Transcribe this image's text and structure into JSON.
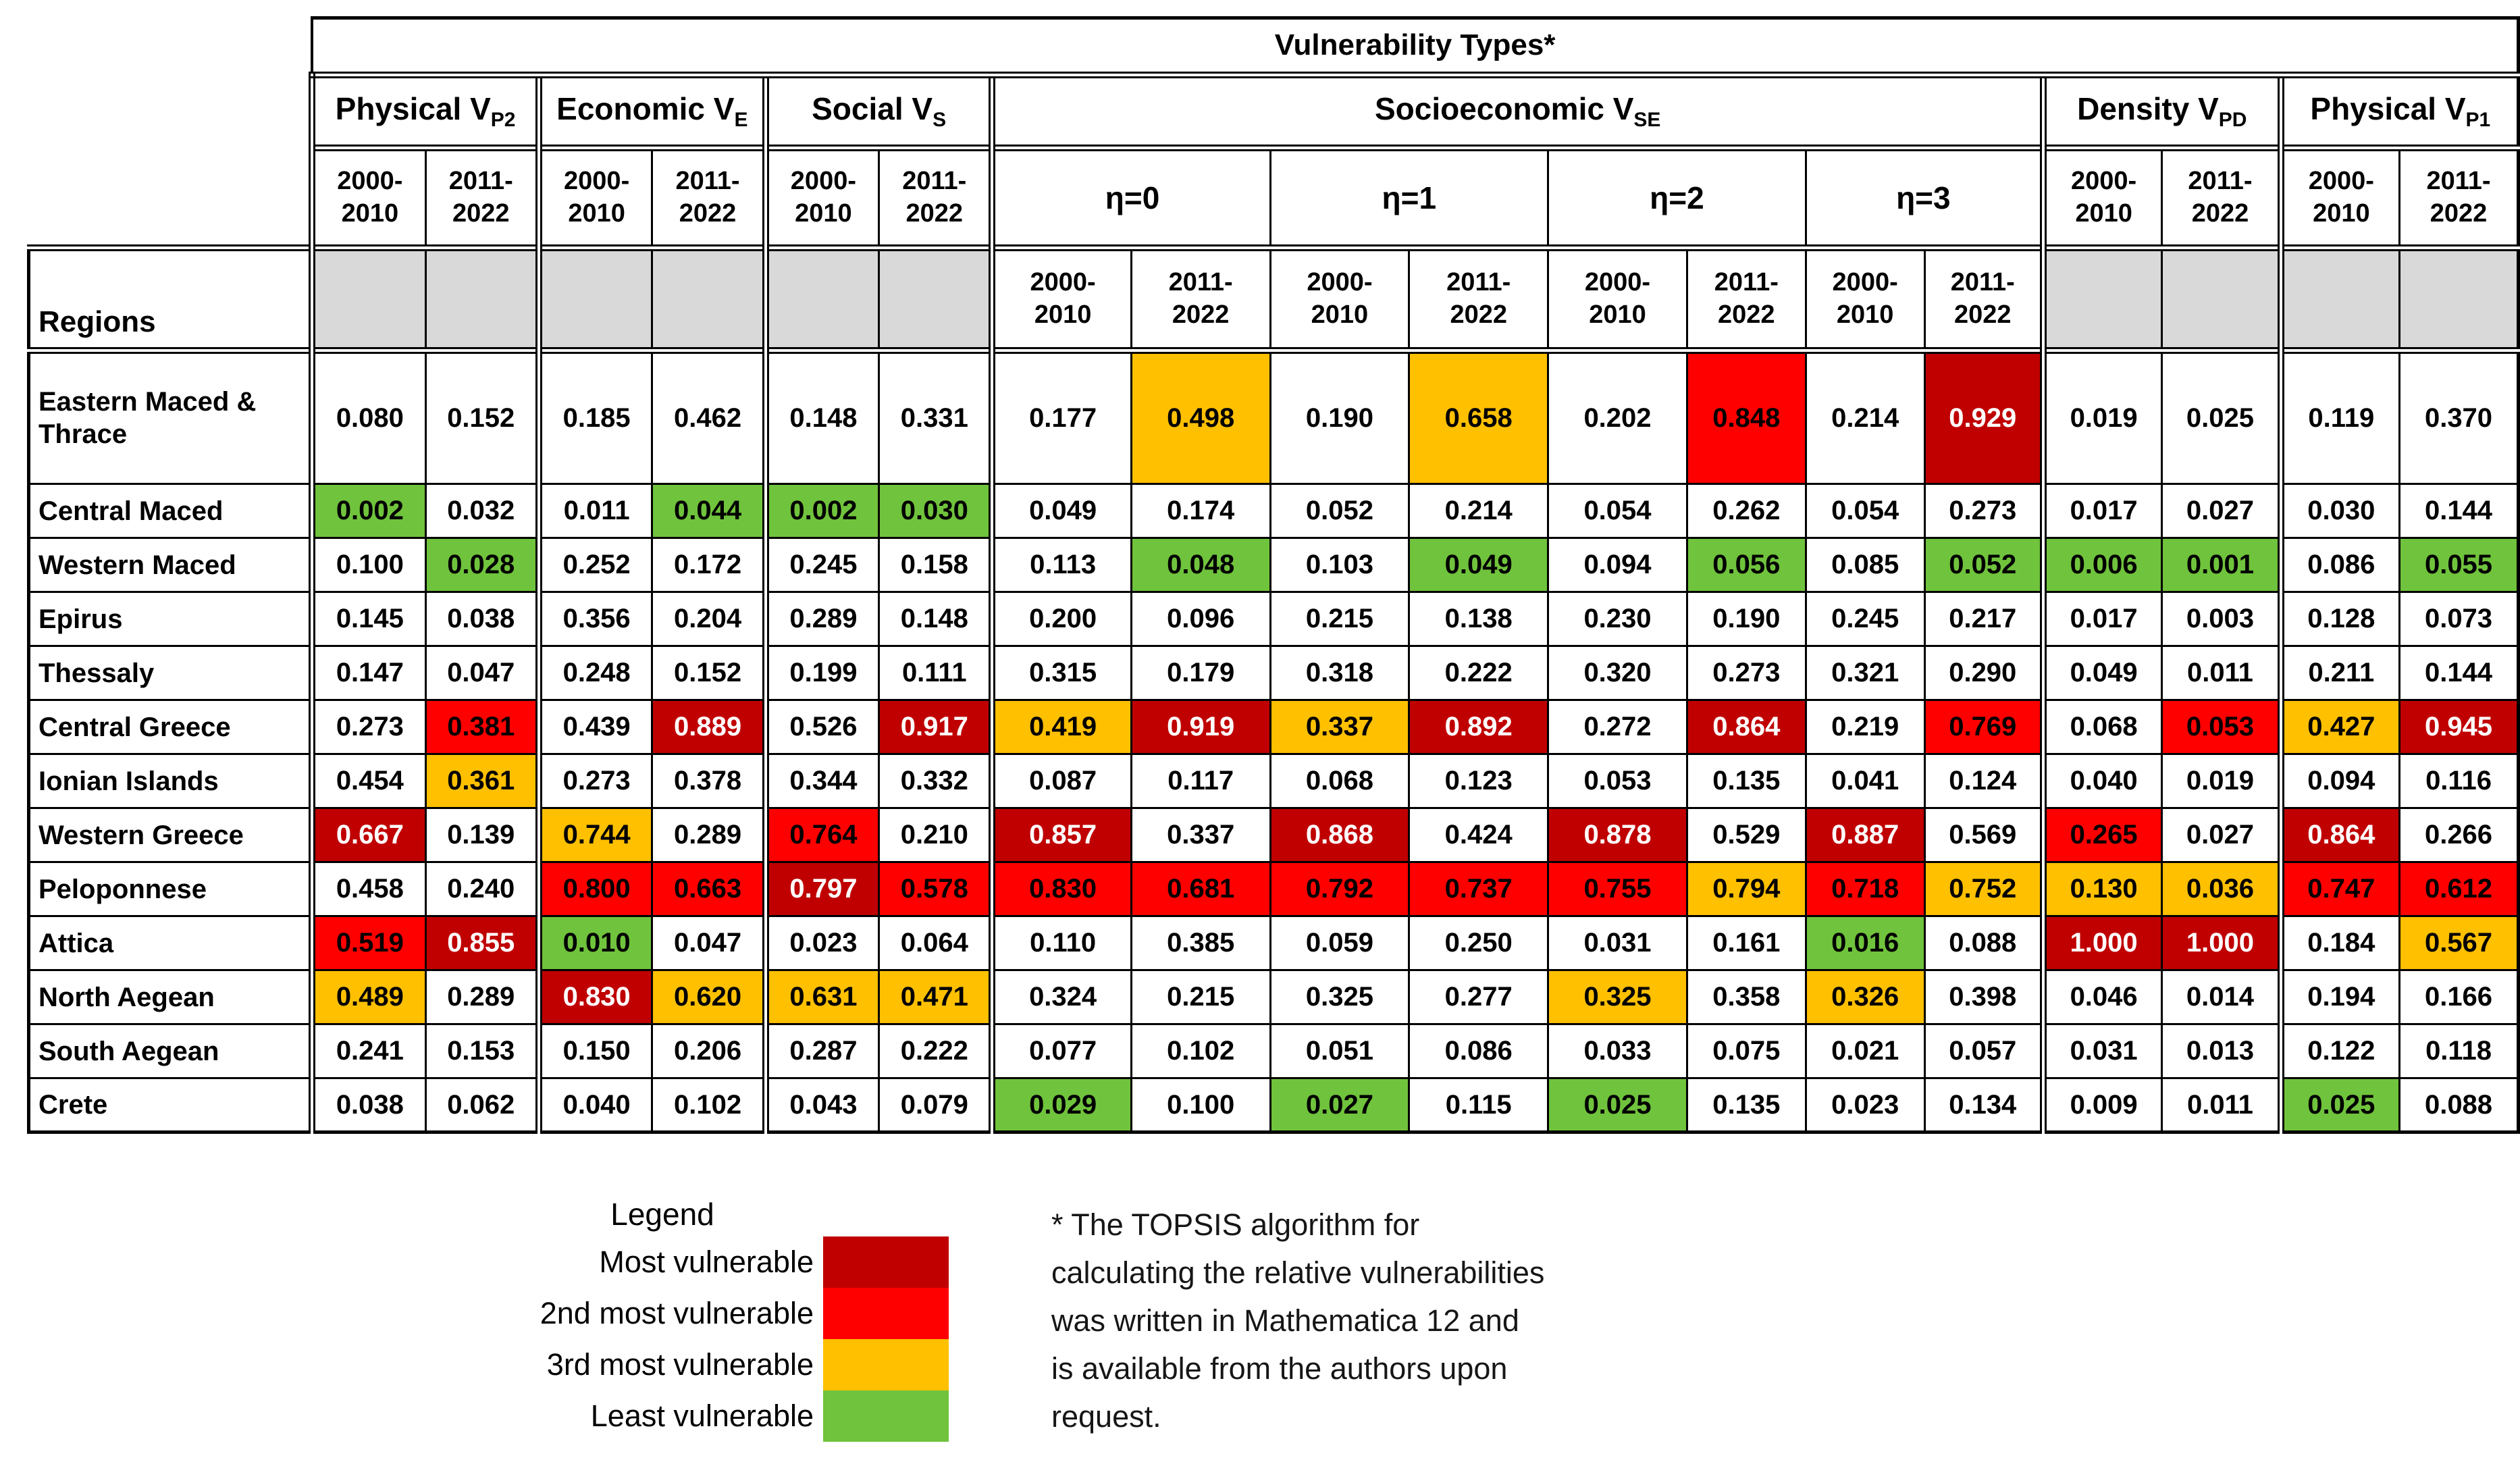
{
  "colors": {
    "most_vulnerable": "#C00000",
    "second_most_vulnerable": "#FF0000",
    "third_most_vulnerable": "#FFC000",
    "least_vulnerable": "#70C33C",
    "header_blank_grey": "#D9D9D9"
  },
  "chart_data": {
    "type": "table",
    "title": "Vulnerability Types*",
    "row_header": "Regions",
    "groups": [
      {
        "label": "Physical V",
        "subscript": "P2",
        "span": 2
      },
      {
        "label": "Economic V",
        "subscript": "E",
        "span": 2
      },
      {
        "label": "Social V",
        "subscript": "S",
        "span": 2
      },
      {
        "label": "Socioeconomic V",
        "subscript": "SE",
        "span": 8
      },
      {
        "label": "Density V",
        "subscript": "PD",
        "span": 2
      },
      {
        "label": "Physical V",
        "subscript": "P1",
        "span": 2
      }
    ],
    "eta_labels": [
      "η=0",
      "η=1",
      "η=2",
      "η=3"
    ],
    "periods": [
      "2000-2010",
      "2011-2022"
    ],
    "color_coding_rule": "Per column: highest value = most vulnerable (dark red, white text), 2nd highest = 2nd most vulnerable (red), 3rd highest = 3rd most vulnerable (orange), lowest = least vulnerable (green)",
    "rows": [
      {
        "region": "Eastern Maced & Thrace",
        "values": [
          "0.080",
          "0.152",
          "0.185",
          "0.462",
          "0.148",
          "0.331",
          "0.177",
          "0.498",
          "0.190",
          "0.658",
          "0.202",
          "0.848",
          "0.214",
          "0.929",
          "0.019",
          "0.025",
          "0.119",
          "0.370"
        ]
      },
      {
        "region": "Central Maced",
        "values": [
          "0.002",
          "0.032",
          "0.011",
          "0.044",
          "0.002",
          "0.030",
          "0.049",
          "0.174",
          "0.052",
          "0.214",
          "0.054",
          "0.262",
          "0.054",
          "0.273",
          "0.017",
          "0.027",
          "0.030",
          "0.144"
        ]
      },
      {
        "region": "Western Maced",
        "values": [
          "0.100",
          "0.028",
          "0.252",
          "0.172",
          "0.245",
          "0.158",
          "0.113",
          "0.048",
          "0.103",
          "0.049",
          "0.094",
          "0.056",
          "0.085",
          "0.052",
          "0.006",
          "0.001",
          "0.086",
          "0.055"
        ]
      },
      {
        "region": "Epirus",
        "values": [
          "0.145",
          "0.038",
          "0.356",
          "0.204",
          "0.289",
          "0.148",
          "0.200",
          "0.096",
          "0.215",
          "0.138",
          "0.230",
          "0.190",
          "0.245",
          "0.217",
          "0.017",
          "0.003",
          "0.128",
          "0.073"
        ]
      },
      {
        "region": "Thessaly",
        "values": [
          "0.147",
          "0.047",
          "0.248",
          "0.152",
          "0.199",
          "0.111",
          "0.315",
          "0.179",
          "0.318",
          "0.222",
          "0.320",
          "0.273",
          "0.321",
          "0.290",
          "0.049",
          "0.011",
          "0.211",
          "0.144"
        ]
      },
      {
        "region": "Central Greece",
        "values": [
          "0.273",
          "0.381",
          "0.439",
          "0.889",
          "0.526",
          "0.917",
          "0.419",
          "0.919",
          "0.337",
          "0.892",
          "0.272",
          "0.864",
          "0.219",
          "0.769",
          "0.068",
          "0.053",
          "0.427",
          "0.945"
        ]
      },
      {
        "region": "Ionian Islands",
        "values": [
          "0.454",
          "0.361",
          "0.273",
          "0.378",
          "0.344",
          "0.332",
          "0.087",
          "0.117",
          "0.068",
          "0.123",
          "0.053",
          "0.135",
          "0.041",
          "0.124",
          "0.040",
          "0.019",
          "0.094",
          "0.116"
        ]
      },
      {
        "region": "Western Greece",
        "values": [
          "0.667",
          "0.139",
          "0.744",
          "0.289",
          "0.764",
          "0.210",
          "0.857",
          "0.337",
          "0.868",
          "0.424",
          "0.878",
          "0.529",
          "0.887",
          "0.569",
          "0.265",
          "0.027",
          "0.864",
          "0.266"
        ]
      },
      {
        "region": "Peloponnese",
        "values": [
          "0.458",
          "0.240",
          "0.800",
          "0.663",
          "0.797",
          "0.578",
          "0.830",
          "0.681",
          "0.792",
          "0.737",
          "0.755",
          "0.794",
          "0.718",
          "0.752",
          "0.130",
          "0.036",
          "0.747",
          "0.612"
        ]
      },
      {
        "region": "Attica",
        "values": [
          "0.519",
          "0.855",
          "0.010",
          "0.047",
          "0.023",
          "0.064",
          "0.110",
          "0.385",
          "0.059",
          "0.250",
          "0.031",
          "0.161",
          "0.016",
          "0.088",
          "1.000",
          "1.000",
          "0.184",
          "0.567"
        ]
      },
      {
        "region": "North Aegean",
        "values": [
          "0.489",
          "0.289",
          "0.830",
          "0.620",
          "0.631",
          "0.471",
          "0.324",
          "0.215",
          "0.325",
          "0.277",
          "0.325",
          "0.358",
          "0.326",
          "0.398",
          "0.046",
          "0.014",
          "0.194",
          "0.166"
        ]
      },
      {
        "region": "South Aegean",
        "values": [
          "0.241",
          "0.153",
          "0.150",
          "0.206",
          "0.287",
          "0.222",
          "0.077",
          "0.102",
          "0.051",
          "0.086",
          "0.033",
          "0.075",
          "0.021",
          "0.057",
          "0.031",
          "0.013",
          "0.122",
          "0.118"
        ]
      },
      {
        "region": "Crete",
        "values": [
          "0.038",
          "0.062",
          "0.040",
          "0.102",
          "0.043",
          "0.079",
          "0.029",
          "0.100",
          "0.027",
          "0.115",
          "0.025",
          "0.135",
          "0.023",
          "0.134",
          "0.009",
          "0.011",
          "0.025",
          "0.088"
        ]
      }
    ]
  },
  "legend": {
    "title": "Legend",
    "items": [
      {
        "label": "Most vulnerable",
        "color_key": "most_vulnerable"
      },
      {
        "label": "2nd most vulnerable",
        "color_key": "second_most_vulnerable"
      },
      {
        "label": "3rd most vulnerable",
        "color_key": "third_most_vulnerable"
      },
      {
        "label": "Least vulnerable",
        "color_key": "least_vulnerable"
      }
    ]
  },
  "footnote": {
    "lines": [
      "* The TOPSIS algorithm for",
      "calculating the relative vulnerabilities",
      "was written in Mathematica 12 and",
      "is available from the authors upon",
      "request."
    ]
  }
}
